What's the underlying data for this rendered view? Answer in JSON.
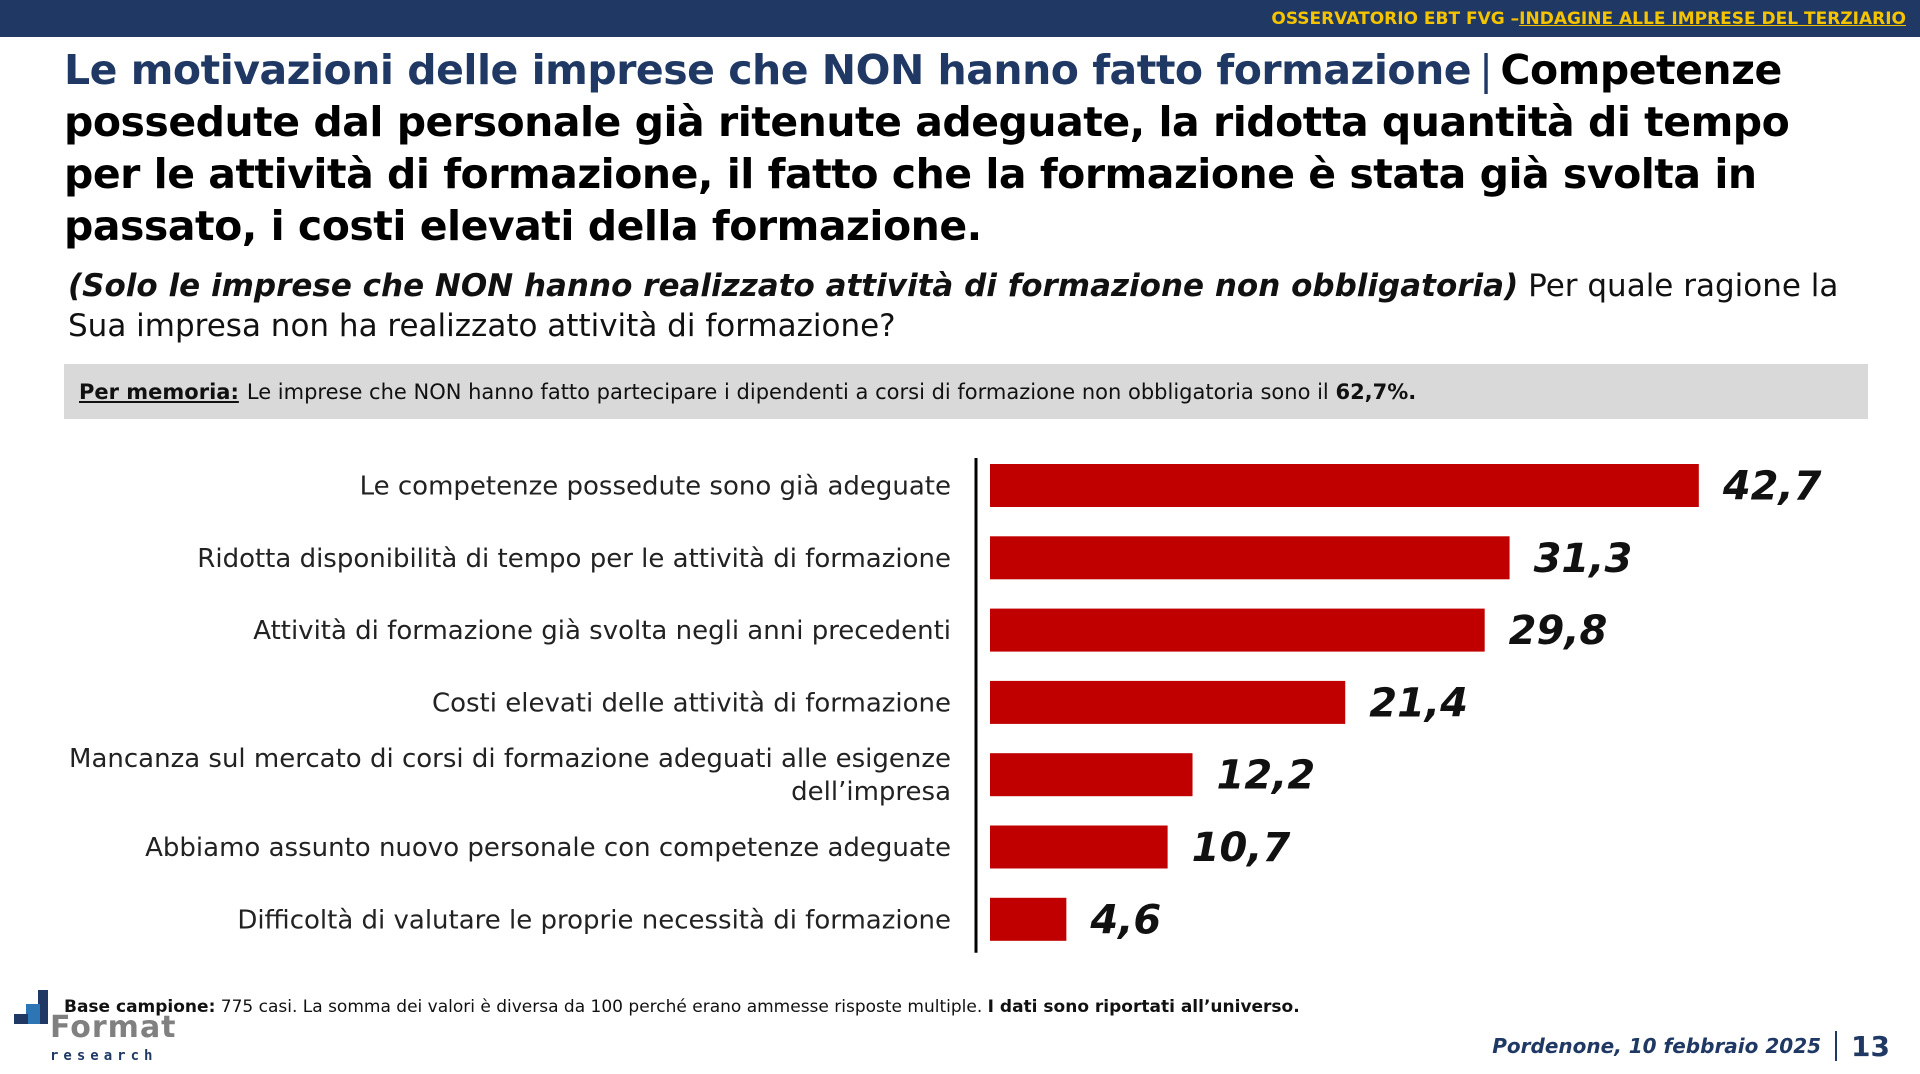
{
  "header": {
    "prefix": "OSSERVATORIO EBT FVG – ",
    "link": "INDAGINE ALLE IMPRESE DEL TERZIARIO"
  },
  "title": {
    "part1": "Le motivazioni delle imprese che NON hanno fatto formazione",
    "separator": "|",
    "part2": "Competenze possedute dal personale già ritenute adeguate, la ridotta quantità di tempo per le attività di formazione, il fatto che la formazione è stata già svolta in passato, i costi elevati della formazione."
  },
  "question": {
    "italic": "(Solo le imprese che NON hanno realizzato attività di formazione non obbligatoria)",
    "text": "Per quale ragione la Sua impresa non ha realizzato attività di formazione?"
  },
  "memo": {
    "label": "Per memoria:",
    "text": "Le imprese che NON hanno fatto partecipare i dipendenti a corsi di formazione non obbligatoria sono il",
    "value": "62,7%."
  },
  "chart_data": {
    "type": "bar",
    "orientation": "horizontal",
    "categories": [
      [
        "Le competenze possedute sono già adeguate"
      ],
      [
        "Ridotta disponibilità di tempo per le attività di formazione"
      ],
      [
        "Attività di formazione già svolta negli anni precedenti"
      ],
      [
        "Costi elevati delle attività di formazione"
      ],
      [
        "Mancanza sul mercato di corsi di formazione adeguati alle esigenze",
        "dell’impresa"
      ],
      [
        "Abbiamo assunto nuovo personale con competenze adeguate"
      ],
      [
        "Difficoltà di valutare le proprie necessità di formazione"
      ]
    ],
    "values": [
      42.7,
      31.3,
      29.8,
      21.4,
      12.2,
      10.7,
      4.6
    ],
    "value_labels": [
      "42,7",
      "31,3",
      "29,8",
      "21,4",
      "12,2",
      "10,7",
      "4,6"
    ],
    "xlim": [
      0,
      50
    ],
    "bar_color": "#c00000",
    "grid": false
  },
  "footer": {
    "base_label": "Base campione:",
    "base_text": "775 casi. La somma dei valori è diversa da 100 perché erano ammesse risposte multiple.",
    "base_bold": "I dati sono riportati all’universo.",
    "place_date": "Pordenone, 10 febbraio 2025",
    "page": "13"
  },
  "logo": {
    "word": "Format",
    "sub": "research"
  }
}
